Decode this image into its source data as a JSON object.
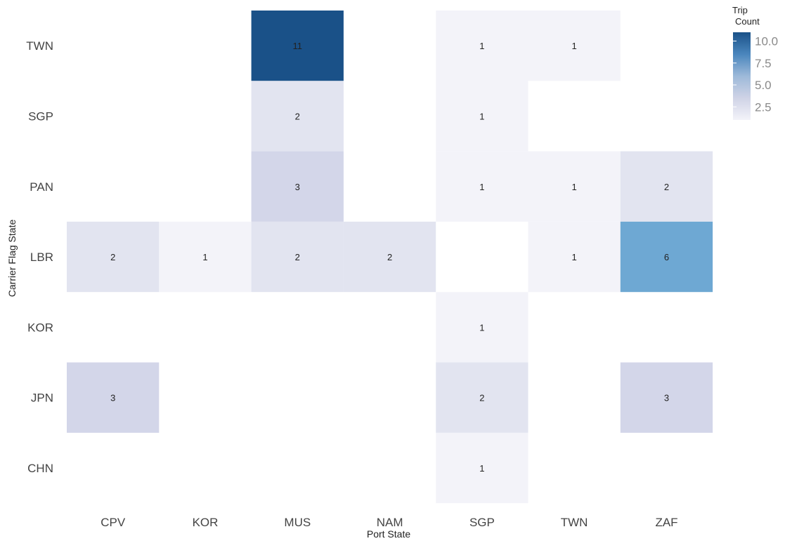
{
  "chart_data": {
    "type": "heatmap",
    "x_categories": [
      "CPV",
      "KOR",
      "MUS",
      "NAM",
      "SGP",
      "TWN",
      "ZAF"
    ],
    "y_categories": [
      "TWN",
      "SGP",
      "PAN",
      "LBR",
      "KOR",
      "JPN",
      "CHN"
    ],
    "xlabel": "Port State",
    "ylabel": "Carrier Flag State",
    "cells": [
      {
        "x": "MUS",
        "y": "TWN",
        "value": 11
      },
      {
        "x": "SGP",
        "y": "TWN",
        "value": 1
      },
      {
        "x": "TWN",
        "y": "TWN",
        "value": 1
      },
      {
        "x": "MUS",
        "y": "SGP",
        "value": 2
      },
      {
        "x": "SGP",
        "y": "SGP",
        "value": 1
      },
      {
        "x": "MUS",
        "y": "PAN",
        "value": 3
      },
      {
        "x": "SGP",
        "y": "PAN",
        "value": 1
      },
      {
        "x": "TWN",
        "y": "PAN",
        "value": 1
      },
      {
        "x": "ZAF",
        "y": "PAN",
        "value": 2
      },
      {
        "x": "CPV",
        "y": "LBR",
        "value": 2
      },
      {
        "x": "KOR",
        "y": "LBR",
        "value": 1
      },
      {
        "x": "MUS",
        "y": "LBR",
        "value": 2
      },
      {
        "x": "NAM",
        "y": "LBR",
        "value": 2
      },
      {
        "x": "TWN",
        "y": "LBR",
        "value": 1
      },
      {
        "x": "ZAF",
        "y": "LBR",
        "value": 6
      },
      {
        "x": "SGP",
        "y": "KOR",
        "value": 1
      },
      {
        "x": "CPV",
        "y": "JPN",
        "value": 3
      },
      {
        "x": "SGP",
        "y": "JPN",
        "value": 2
      },
      {
        "x": "ZAF",
        "y": "JPN",
        "value": 3
      },
      {
        "x": "SGP",
        "y": "CHN",
        "value": 1
      }
    ],
    "legend": {
      "title_lines": [
        "Trip",
        "Count"
      ],
      "ticks": [
        10.0,
        7.5,
        5.0,
        2.5
      ],
      "tick_labels": [
        "10.0",
        "7.5",
        "5.0",
        "2.5"
      ],
      "range": [
        1,
        11
      ],
      "placement": "top-right"
    },
    "colors": {
      "low": "#f0f0f7",
      "mid": "#c8cce2",
      "high": "#1a5188",
      "mid2": "#6ca6d2"
    },
    "grid": false
  }
}
